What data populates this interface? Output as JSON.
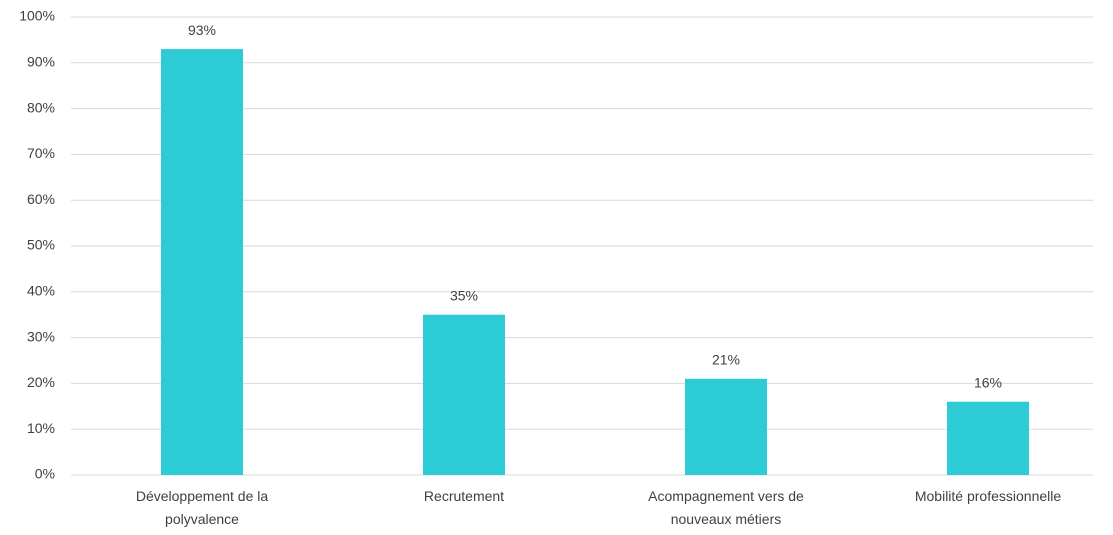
{
  "chart_data": {
    "type": "bar",
    "categories": [
      "Développement de la polyvalence",
      "Recrutement",
      "Acompagnement vers de nouveaux métiers",
      "Mobilité professionnelle"
    ],
    "values": [
      93,
      35,
      21,
      16
    ],
    "value_labels": [
      "93%",
      "35%",
      "21%",
      "16%"
    ],
    "color": "#2ccbd5",
    "ylim": [
      0,
      100
    ],
    "yticks": [
      {
        "value": 0,
        "label": "0%"
      },
      {
        "value": 10,
        "label": "10%"
      },
      {
        "value": 20,
        "label": "20%"
      },
      {
        "value": 30,
        "label": "30%"
      },
      {
        "value": 40,
        "label": "40%"
      },
      {
        "value": 50,
        "label": "50%"
      },
      {
        "value": 60,
        "label": "60%"
      },
      {
        "value": 70,
        "label": "70%"
      },
      {
        "value": 80,
        "label": "80%"
      },
      {
        "value": 90,
        "label": "90%"
      },
      {
        "value": 100,
        "label": "100%"
      }
    ],
    "grid": true
  }
}
